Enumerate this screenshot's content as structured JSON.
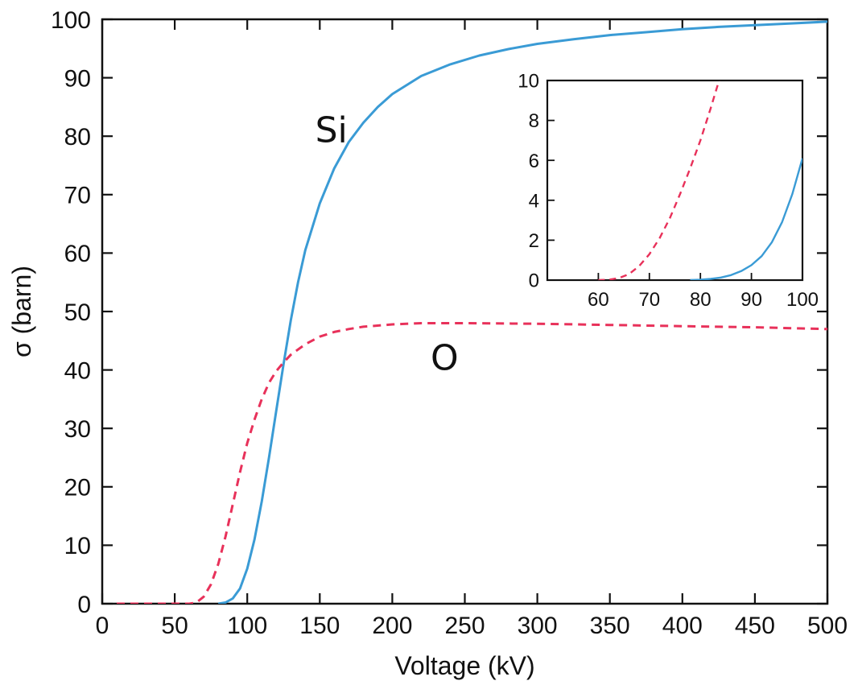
{
  "chart_data": {
    "main": {
      "type": "line",
      "xlabel": "Voltage (kV)",
      "ylabel": "σ (barn)",
      "xlim": [
        0,
        500
      ],
      "ylim": [
        0,
        100
      ],
      "xticks": [
        0,
        50,
        100,
        150,
        200,
        250,
        300,
        350,
        400,
        450,
        500
      ],
      "yticks": [
        0,
        10,
        20,
        30,
        40,
        50,
        60,
        70,
        80,
        90,
        100
      ],
      "grid": false,
      "series": [
        {
          "name": "Si",
          "style": "solid",
          "color": "#3a9bd5",
          "x": [
            80,
            85,
            90,
            95,
            100,
            105,
            110,
            115,
            120,
            125,
            130,
            135,
            140,
            150,
            160,
            170,
            180,
            190,
            200,
            220,
            240,
            260,
            280,
            300,
            325,
            350,
            375,
            400,
            425,
            450,
            475,
            500
          ],
          "y": [
            0,
            0.2,
            0.9,
            2.6,
            6,
            11,
            17.5,
            25,
            33,
            41,
            48.5,
            55,
            60.5,
            68.5,
            74.5,
            79,
            82.3,
            85,
            87.2,
            90.3,
            92.3,
            93.8,
            94.9,
            95.8,
            96.6,
            97.3,
            97.8,
            98.3,
            98.7,
            99,
            99.3,
            99.6
          ]
        },
        {
          "name": "O",
          "style": "dashed",
          "color": "#e8315a",
          "x": [
            10,
            60,
            65,
            70,
            75,
            80,
            85,
            90,
            95,
            100,
            105,
            110,
            115,
            120,
            125,
            130,
            140,
            150,
            160,
            170,
            180,
            200,
            220,
            250,
            300,
            350,
            400,
            450,
            500
          ],
          "y": [
            0,
            0,
            0.2,
            1.2,
            3.3,
            6.8,
            11.5,
            17,
            22.5,
            27.5,
            31.5,
            35,
            37.8,
            39.8,
            41.3,
            42.6,
            44.4,
            45.7,
            46.5,
            47,
            47.4,
            47.8,
            48,
            48,
            47.9,
            47.7,
            47.5,
            47.3,
            47
          ]
        }
      ],
      "annotations": [
        {
          "text": "Si",
          "x": 158,
          "y": 79
        },
        {
          "text": "O",
          "x": 236,
          "y": 40
        }
      ]
    },
    "inset": {
      "type": "line",
      "xlim": [
        50,
        100
      ],
      "ylim": [
        0,
        10
      ],
      "xticks": [
        60,
        70,
        80,
        90,
        100
      ],
      "yticks": [
        0,
        2,
        4,
        6,
        8,
        10
      ],
      "series": [
        {
          "name": "Si",
          "style": "solid",
          "color": "#3a9bd5",
          "x": [
            78,
            80,
            82,
            84,
            86,
            88,
            90,
            92,
            94,
            96,
            98,
            100
          ],
          "y": [
            0,
            0.02,
            0.06,
            0.13,
            0.25,
            0.45,
            0.75,
            1.2,
            1.9,
            2.9,
            4.3,
            6.1
          ]
        },
        {
          "name": "O",
          "style": "dashed",
          "color": "#e8315a",
          "x": [
            60,
            62,
            64,
            66,
            68,
            70,
            72,
            74,
            76,
            78,
            80,
            82,
            84
          ],
          "y": [
            0,
            0.02,
            0.1,
            0.3,
            0.7,
            1.3,
            2.1,
            3.1,
            4.3,
            5.6,
            7.0,
            8.6,
            10.3
          ]
        }
      ]
    }
  }
}
